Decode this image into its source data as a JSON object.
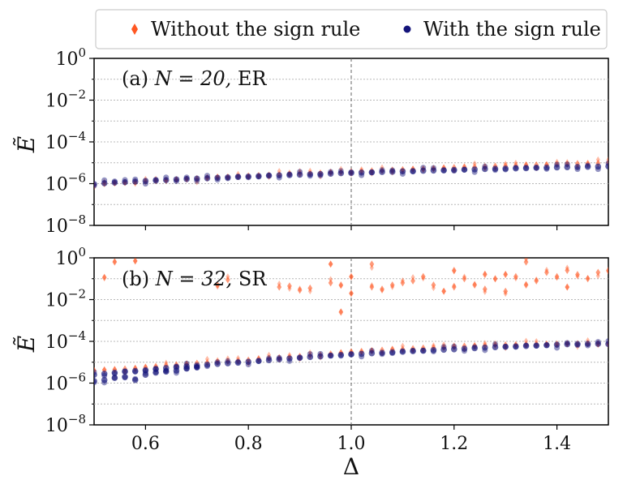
{
  "chart_data": {
    "type": "scatter",
    "legend": {
      "placement": "top-center",
      "entries": [
        {
          "name": "Without the sign rule",
          "color": "#ff5722",
          "marker": "diamond"
        },
        {
          "name": "With the sign rule",
          "color": "#14147a",
          "marker": "circle"
        }
      ]
    },
    "xlabel": "Δ",
    "xlim": [
      0.5,
      1.5
    ],
    "xticks": [
      "0.6",
      "0.8",
      "1.0",
      "1.2",
      "1.4"
    ],
    "xtick_values": [
      0.6,
      0.8,
      1.0,
      1.2,
      1.4
    ],
    "vline_x": 1.0,
    "panels": [
      {
        "label_prefix": "(a)",
        "label_math": "N = 20,",
        "label_suffix": "ER",
        "ylabel": "Ẽ",
        "yscale": "log",
        "ylim_exp": [
          -8,
          0
        ],
        "yticks": [
          {
            "base": "10",
            "exp": "0",
            "value_exp": 0
          },
          {
            "base": "10",
            "exp": "−2",
            "value_exp": -2
          },
          {
            "base": "10",
            "exp": "−4",
            "value_exp": -4
          },
          {
            "base": "10",
            "exp": "−6",
            "value_exp": -6
          },
          {
            "base": "10",
            "exp": "−8",
            "value_exp": -8
          }
        ],
        "series": [
          {
            "name": "Without the sign rule",
            "x": [
              0.5,
              0.52,
              0.54,
              0.56,
              0.58,
              0.6,
              0.62,
              0.64,
              0.66,
              0.68,
              0.7,
              0.72,
              0.74,
              0.76,
              0.78,
              0.8,
              0.82,
              0.84,
              0.86,
              0.88,
              0.9,
              0.92,
              0.94,
              0.96,
              0.98,
              1.0,
              1.02,
              1.04,
              1.06,
              1.08,
              1.1,
              1.12,
              1.14,
              1.16,
              1.18,
              1.2,
              1.22,
              1.24,
              1.26,
              1.28,
              1.3,
              1.32,
              1.34,
              1.36,
              1.38,
              1.4,
              1.42,
              1.44,
              1.46,
              1.48,
              1.5
            ],
            "log10_y": [
              -6.05,
              -6.0,
              -5.97,
              -5.94,
              -5.92,
              -5.89,
              -5.86,
              -5.84,
              -5.81,
              -5.78,
              -5.76,
              -5.73,
              -5.7,
              -5.68,
              -5.66,
              -5.63,
              -5.61,
              -5.59,
              -5.57,
              -5.55,
              -5.53,
              -5.51,
              -5.49,
              -5.47,
              -5.45,
              -5.43,
              -5.41,
              -5.39,
              -5.37,
              -5.35,
              -5.33,
              -5.31,
              -5.29,
              -5.27,
              -5.25,
              -5.23,
              -5.22,
              -5.2,
              -5.18,
              -5.16,
              -5.15,
              -5.13,
              -5.12,
              -5.1,
              -5.09,
              -5.07,
              -5.06,
              -5.04,
              -5.03,
              -5.02,
              -5.0
            ]
          },
          {
            "name": "With the sign rule",
            "x": [
              0.5,
              0.52,
              0.54,
              0.56,
              0.58,
              0.6,
              0.62,
              0.64,
              0.66,
              0.68,
              0.7,
              0.72,
              0.74,
              0.76,
              0.78,
              0.8,
              0.82,
              0.84,
              0.86,
              0.88,
              0.9,
              0.92,
              0.94,
              0.96,
              0.98,
              1.0,
              1.02,
              1.04,
              1.06,
              1.08,
              1.1,
              1.12,
              1.14,
              1.16,
              1.18,
              1.2,
              1.22,
              1.24,
              1.26,
              1.28,
              1.3,
              1.32,
              1.34,
              1.36,
              1.38,
              1.4,
              1.42,
              1.44,
              1.46,
              1.48,
              1.5
            ],
            "log10_y": [
              -6.02,
              -5.98,
              -5.95,
              -5.93,
              -5.9,
              -5.87,
              -5.85,
              -5.83,
              -5.8,
              -5.78,
              -5.76,
              -5.74,
              -5.72,
              -5.7,
              -5.68,
              -5.66,
              -5.64,
              -5.62,
              -5.6,
              -5.59,
              -5.57,
              -5.55,
              -5.54,
              -5.52,
              -5.5,
              -5.49,
              -5.47,
              -5.46,
              -5.44,
              -5.43,
              -5.41,
              -5.4,
              -5.38,
              -5.37,
              -5.36,
              -5.34,
              -5.33,
              -5.32,
              -5.3,
              -5.29,
              -5.28,
              -5.27,
              -5.26,
              -5.24,
              -5.23,
              -5.22,
              -5.21,
              -5.2,
              -5.19,
              -5.18,
              -5.17
            ]
          }
        ]
      },
      {
        "label_prefix": "(b)",
        "label_math": "N = 32,",
        "label_suffix": "SR",
        "ylabel": "Ẽ",
        "yscale": "log",
        "ylim_exp": [
          -8,
          0
        ],
        "yticks": [
          {
            "base": "10",
            "exp": "0",
            "value_exp": 0
          },
          {
            "base": "10",
            "exp": "−2",
            "value_exp": -2
          },
          {
            "base": "10",
            "exp": "−4",
            "value_exp": -4
          },
          {
            "base": "10",
            "exp": "−6",
            "value_exp": -6
          },
          {
            "base": "10",
            "exp": "−8",
            "value_exp": -8
          }
        ],
        "series": [
          {
            "name": "Without the sign rule",
            "x": [
              0.5,
              0.52,
              0.54,
              0.56,
              0.58,
              0.6,
              0.62,
              0.64,
              0.66,
              0.68,
              0.7,
              0.72,
              0.74,
              0.76,
              0.78,
              0.8,
              0.82,
              0.84,
              0.86,
              0.88,
              0.9,
              0.92,
              0.94,
              0.96,
              0.98,
              1.0,
              1.02,
              1.04,
              1.06,
              1.08,
              1.1,
              1.12,
              1.14,
              1.16,
              1.18,
              1.2,
              1.22,
              1.24,
              1.26,
              1.28,
              1.3,
              1.32,
              1.34,
              1.36,
              1.38,
              1.4,
              1.42,
              1.44,
              1.46,
              1.48,
              1.5,
              0.52,
              0.54,
              0.58,
              0.74,
              0.76,
              0.86,
              0.88,
              0.9,
              0.92,
              0.96,
              0.96,
              0.98,
              0.98,
              1.0,
              1.0,
              1.04,
              1.04,
              1.06,
              1.08,
              1.1,
              1.12,
              1.14,
              1.16,
              1.18,
              1.2,
              1.2,
              1.22,
              1.24,
              1.26,
              1.26,
              1.28,
              1.3,
              1.3,
              1.32,
              1.34,
              1.34,
              1.36,
              1.38,
              1.4,
              1.42,
              1.42,
              1.44,
              1.46,
              1.48,
              1.5
            ],
            "log10_y": [
              -5.4,
              -5.37,
              -5.35,
              -5.32,
              -5.3,
              -5.25,
              -5.2,
              -5.15,
              -5.12,
              -5.08,
              -5.05,
              -5.02,
              -4.98,
              -4.95,
              -4.93,
              -4.9,
              -4.85,
              -4.8,
              -4.78,
              -4.75,
              -4.72,
              -4.68,
              -4.65,
              -4.6,
              -4.55,
              -4.5,
              -4.48,
              -4.45,
              -4.42,
              -4.4,
              -4.38,
              -4.35,
              -4.32,
              -4.3,
              -4.28,
              -4.25,
              -4.23,
              -4.21,
              -4.2,
              -4.18,
              -4.17,
              -4.16,
              -4.15,
              -4.14,
              -4.13,
              -4.12,
              -4.11,
              -4.11,
              -4.1,
              -4.1,
              -4.1,
              -0.95,
              -0.2,
              -0.15,
              -1.3,
              -1.05,
              -1.4,
              -1.35,
              -1.55,
              -1.45,
              -1.2,
              -0.3,
              -1.3,
              -2.6,
              -0.9,
              -1.7,
              -0.3,
              -1.4,
              -1.5,
              -1.3,
              -1.2,
              -1.1,
              -0.9,
              -1.3,
              -1.6,
              -0.6,
              -1.4,
              -1.0,
              -1.3,
              -0.8,
              -1.5,
              -1.0,
              -0.8,
              -1.6,
              -0.9,
              -0.2,
              -1.3,
              -1.1,
              -0.7,
              -0.9,
              -0.6,
              -1.4,
              -0.8,
              -1.0,
              -0.7,
              -0.6
            ]
          },
          {
            "name": "With the sign rule",
            "x": [
              0.5,
              0.52,
              0.54,
              0.56,
              0.58,
              0.6,
              0.62,
              0.64,
              0.66,
              0.68,
              0.7,
              0.72,
              0.74,
              0.76,
              0.78,
              0.8,
              0.82,
              0.84,
              0.86,
              0.88,
              0.9,
              0.92,
              0.94,
              0.96,
              0.98,
              1.0,
              1.02,
              1.04,
              1.06,
              1.08,
              1.1,
              1.12,
              1.14,
              1.16,
              1.18,
              1.2,
              1.22,
              1.24,
              1.26,
              1.28,
              1.3,
              1.32,
              1.34,
              1.36,
              1.38,
              1.4,
              1.42,
              1.44,
              1.46,
              1.48,
              1.5,
              0.5,
              0.52,
              0.54,
              0.56,
              0.58,
              0.6,
              0.62,
              0.64,
              0.66,
              0.68,
              0.7
            ],
            "log10_y": [
              -5.6,
              -5.55,
              -5.5,
              -5.45,
              -5.42,
              -5.38,
              -5.33,
              -5.28,
              -5.24,
              -5.2,
              -5.16,
              -5.12,
              -5.08,
              -5.05,
              -5.02,
              -4.98,
              -4.94,
              -4.9,
              -4.86,
              -4.82,
              -4.78,
              -4.75,
              -4.72,
              -4.68,
              -4.65,
              -4.62,
              -4.6,
              -4.57,
              -4.55,
              -4.52,
              -4.5,
              -4.47,
              -4.45,
              -4.42,
              -4.4,
              -4.38,
              -4.35,
              -4.33,
              -4.3,
              -4.28,
              -4.26,
              -4.24,
              -4.22,
              -4.2,
              -4.18,
              -4.16,
              -4.14,
              -4.13,
              -4.12,
              -4.12,
              -4.13,
              -5.9,
              -5.85,
              -5.75,
              -5.7,
              -5.85,
              -5.6,
              -5.5,
              -5.45,
              -5.4,
              -5.3,
              -5.25
            ]
          }
        ]
      }
    ]
  }
}
